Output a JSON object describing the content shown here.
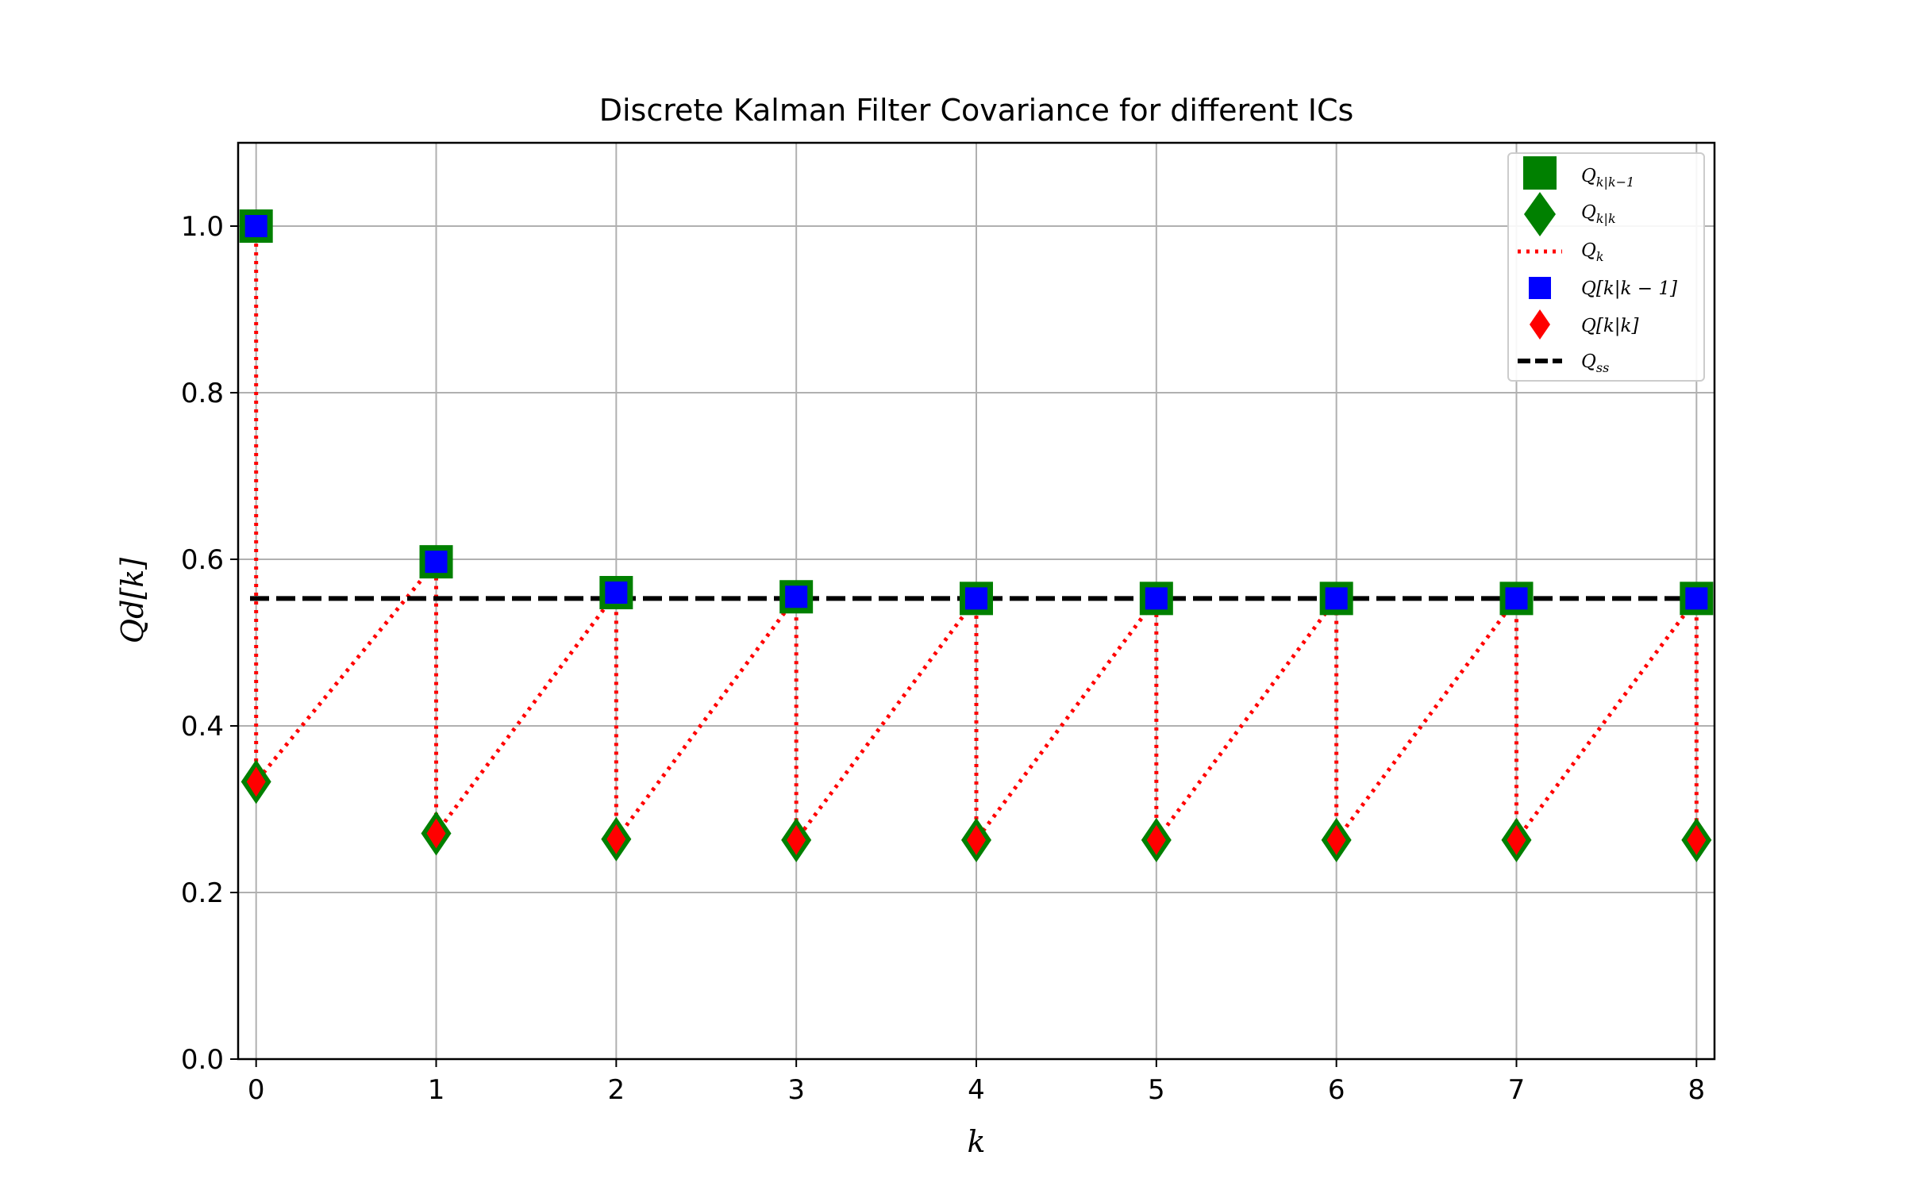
{
  "chart_data": {
    "type": "line",
    "title": "Discrete Kalman Filter Covariance for different ICs",
    "xlabel": "k",
    "ylabel": "Qd[k]",
    "xlim": [
      -0.1,
      8.1
    ],
    "ylim": [
      0.0,
      1.1
    ],
    "x_ticks": [
      "0",
      "1",
      "2",
      "3",
      "4",
      "5",
      "6",
      "7",
      "8"
    ],
    "y_ticks": [
      "0.0",
      "0.2",
      "0.4",
      "0.6",
      "0.8",
      "1.0"
    ],
    "grid": true,
    "legend_position": "top-right",
    "k": [
      0,
      1,
      2,
      3,
      4,
      5,
      6,
      7,
      8
    ],
    "series": [
      {
        "name": "Q_{k|k-1}",
        "marker": "square",
        "color": "#008000",
        "values": [
          1.0,
          0.597,
          0.56,
          0.555,
          0.553,
          0.553,
          0.553,
          0.553,
          0.553
        ]
      },
      {
        "name": "Q_{k|k}",
        "marker": "diamond",
        "color": "#008000",
        "values": [
          0.333,
          0.271,
          0.264,
          0.263,
          0.263,
          0.263,
          0.263,
          0.263,
          0.263
        ]
      },
      {
        "name": "Q_k",
        "line": "dotted",
        "color": "#ff0000",
        "sequence": "alternating Q_{k|k-1} and Q_{k|k}"
      },
      {
        "name": "Q[k|k-1]",
        "marker": "square",
        "color": "#0000ff",
        "values": [
          1.0,
          0.597,
          0.56,
          0.555,
          0.553,
          0.553,
          0.553,
          0.553,
          0.553
        ]
      },
      {
        "name": "Q[k|k]",
        "marker": "diamond",
        "color": "#ff0000",
        "values": [
          0.333,
          0.271,
          0.264,
          0.263,
          0.263,
          0.263,
          0.263,
          0.263,
          0.263
        ]
      },
      {
        "name": "Q_ss",
        "line": "dashed",
        "color": "#000000",
        "value": 0.553
      }
    ]
  }
}
